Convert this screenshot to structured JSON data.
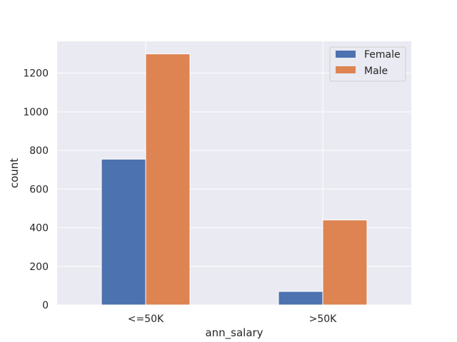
{
  "chart_data": {
    "type": "bar",
    "categories": [
      "<=50K",
      ">50K"
    ],
    "series": [
      {
        "name": "Female",
        "values": [
          755,
          70
        ],
        "color": "#4c72b0"
      },
      {
        "name": "Male",
        "values": [
          1300,
          440
        ],
        "color": "#dd8452"
      }
    ],
    "xlabel": "ann_salary",
    "ylabel": "count",
    "ylim": [
      0,
      1365
    ],
    "yticks": [
      0,
      200,
      400,
      600,
      800,
      1000,
      1200
    ],
    "grid": true,
    "legend_position": "top-right",
    "background": "#eaeaf2"
  }
}
